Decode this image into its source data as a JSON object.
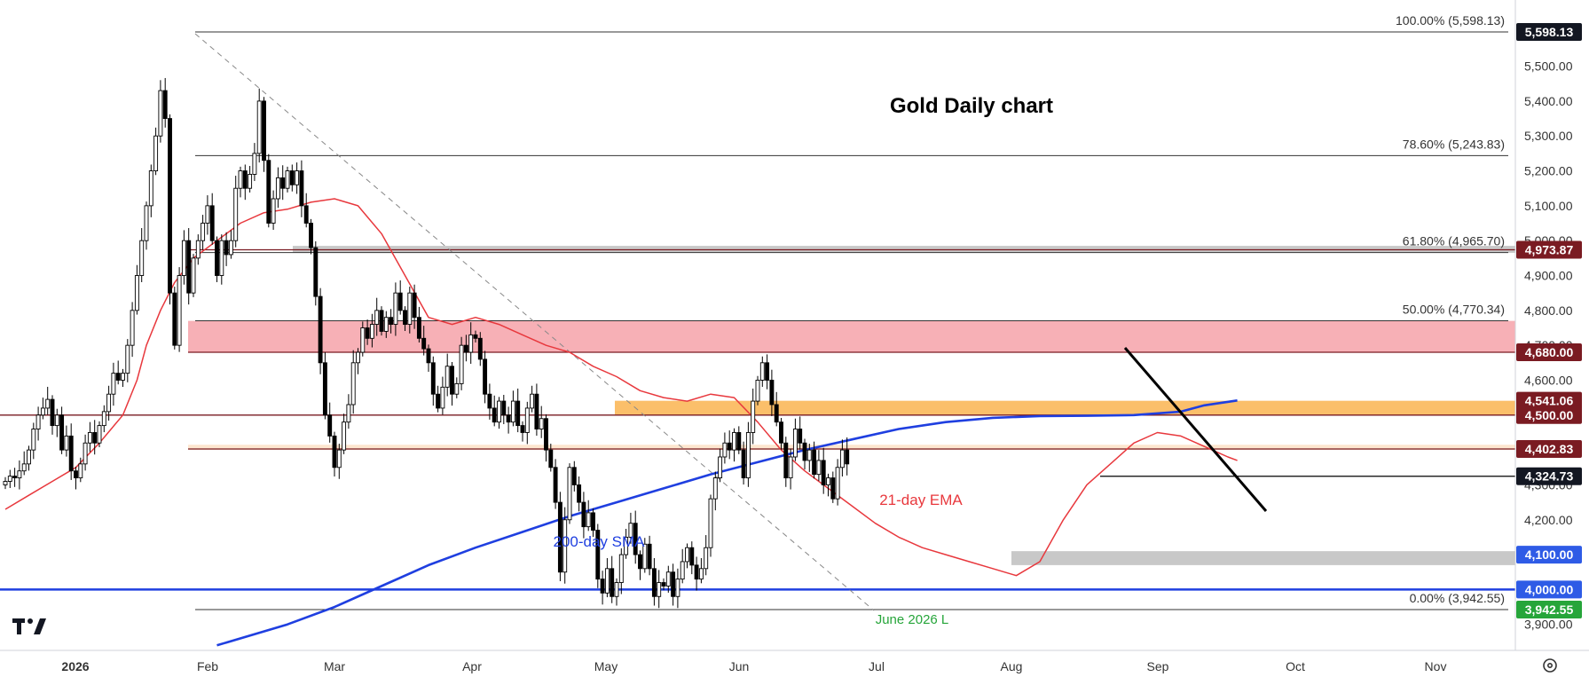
{
  "colors": {
    "candle_up": "#ffffff",
    "candle_down": "#000000",
    "candle_outline": "#000000",
    "sma200": "#1f3fe0",
    "ema21": "#e8383d",
    "zone_red": "#f7b0b6",
    "zone_orange": "#fbbf6a",
    "zone_peach": "#fde6cf",
    "zone_grey": "#c8c8c8",
    "tag_dark": "#131722",
    "tag_maroon": "#7a1b22",
    "tag_blue": "#2e5be6",
    "tag_green": "#26a53a"
  },
  "chart_data": {
    "type": "candlestick",
    "title": "Gold Daily chart",
    "x_axis": {
      "labels": [
        "2026",
        "Feb",
        "Mar",
        "Apr",
        "May",
        "Jun",
        "Jul",
        "Aug",
        "Sep",
        "Oct",
        "Nov"
      ]
    },
    "y_axis": {
      "range": [
        3850,
        5640
      ],
      "ticks": [
        "5,500.00",
        "5,400.00",
        "5,300.00",
        "5,200.00",
        "5,100.00",
        "5,000.00",
        "4,900.00",
        "4,800.00",
        "4,700.00",
        "4,600.00",
        "4,500.00",
        "4,400.00",
        "4,300.00",
        "4,200.00",
        "4,100.00",
        "4,000.00",
        "3,900.00"
      ]
    },
    "fibonacci": [
      {
        "label": "100.00% (5,598.13)",
        "value": 5598.13
      },
      {
        "label": "78.60% (5,243.83)",
        "value": 5243.83
      },
      {
        "label": "61.80% (4,965.70)",
        "value": 4965.7
      },
      {
        "label": "50.00% (4,770.34)",
        "value": 4770.34
      },
      {
        "label": "0.00% (3,942.55)",
        "value": 3942.55
      }
    ],
    "price_tags": [
      {
        "label": "5,598.13",
        "value": 5598.13,
        "style": "dark"
      },
      {
        "label": "4,973.87",
        "value": 4973.87,
        "style": "maroon"
      },
      {
        "label": "4,680.00",
        "value": 4680.0,
        "style": "maroon"
      },
      {
        "label": "4,541.06",
        "value": 4541.06,
        "style": "maroon"
      },
      {
        "label": "4,500.00",
        "value": 4500.0,
        "style": "maroon"
      },
      {
        "label": "4,402.83",
        "value": 4402.83,
        "style": "maroon"
      },
      {
        "label": "4,324.73",
        "value": 4324.73,
        "style": "dark"
      },
      {
        "label": "4,100.00",
        "value": 4100.0,
        "style": "blue"
      },
      {
        "label": "4,000.00",
        "value": 4000.0,
        "style": "blue"
      },
      {
        "label": "3,942.55",
        "value": 3942.55,
        "style": "green"
      }
    ],
    "zones": [
      {
        "name": "resistance-zone-red",
        "from": 4680,
        "to": 4770,
        "color": "zone_red"
      },
      {
        "name": "support-zone-orange",
        "from": 4500,
        "to": 4541,
        "color": "zone_orange"
      },
      {
        "name": "support-zone-peach",
        "from": 4400,
        "to": 4415,
        "color": "zone_peach"
      },
      {
        "name": "zone-grey-5000",
        "from": 4965,
        "to": 4985,
        "color": "zone_grey"
      },
      {
        "name": "zone-grey-4100",
        "from": 4070,
        "to": 4110,
        "color": "zone_grey"
      }
    ],
    "horizontal_lines": [
      {
        "value": 4680,
        "color": "#7a1b22"
      },
      {
        "value": 4500,
        "color": "#7a1b22"
      },
      {
        "value": 4402.83,
        "color": "#7a1b22"
      },
      {
        "value": 4324.73,
        "color": "#000000"
      },
      {
        "value": 4000,
        "color": "#1f3fe0"
      },
      {
        "value": 4973.87,
        "color": "#7a1b22"
      }
    ],
    "annotations": {
      "sma": "200-day SMA",
      "ema": "21-day EMA",
      "june_low": "June 2026 L"
    },
    "sma200": [
      [
        45,
        3840
      ],
      [
        60,
        3900
      ],
      [
        70,
        3950
      ],
      [
        80,
        4010
      ],
      [
        90,
        4070
      ],
      [
        100,
        4120
      ],
      [
        110,
        4165
      ],
      [
        120,
        4210
      ],
      [
        130,
        4250
      ],
      [
        140,
        4290
      ],
      [
        150,
        4330
      ],
      [
        160,
        4365
      ],
      [
        170,
        4400
      ],
      [
        180,
        4430
      ],
      [
        190,
        4460
      ],
      [
        200,
        4480
      ],
      [
        210,
        4492
      ],
      [
        220,
        4497
      ],
      [
        230,
        4498
      ],
      [
        240,
        4500
      ],
      [
        250,
        4510
      ],
      [
        255,
        4528
      ],
      [
        262,
        4542
      ]
    ],
    "ema21": [
      [
        0,
        4230
      ],
      [
        5,
        4270
      ],
      [
        10,
        4310
      ],
      [
        15,
        4350
      ],
      [
        20,
        4420
      ],
      [
        25,
        4500
      ],
      [
        28,
        4600
      ],
      [
        30,
        4700
      ],
      [
        33,
        4800
      ],
      [
        36,
        4880
      ],
      [
        40,
        4950
      ],
      [
        45,
        5000
      ],
      [
        50,
        5050
      ],
      [
        55,
        5080
      ],
      [
        60,
        5090
      ],
      [
        65,
        5110
      ],
      [
        70,
        5120
      ],
      [
        75,
        5100
      ],
      [
        80,
        5020
      ],
      [
        85,
        4900
      ],
      [
        90,
        4780
      ],
      [
        95,
        4760
      ],
      [
        100,
        4780
      ],
      [
        105,
        4760
      ],
      [
        110,
        4730
      ],
      [
        115,
        4700
      ],
      [
        120,
        4680
      ],
      [
        125,
        4640
      ],
      [
        130,
        4610
      ],
      [
        135,
        4570
      ],
      [
        140,
        4550
      ],
      [
        145,
        4540
      ],
      [
        150,
        4560
      ],
      [
        155,
        4550
      ],
      [
        160,
        4480
      ],
      [
        165,
        4400
      ],
      [
        170,
        4340
      ],
      [
        175,
        4290
      ],
      [
        180,
        4240
      ],
      [
        185,
        4190
      ],
      [
        190,
        4150
      ],
      [
        195,
        4120
      ],
      [
        200,
        4100
      ],
      [
        205,
        4080
      ],
      [
        210,
        4060
      ],
      [
        215,
        4040
      ],
      [
        220,
        4080
      ],
      [
        225,
        4200
      ],
      [
        230,
        4300
      ],
      [
        235,
        4360
      ],
      [
        240,
        4420
      ],
      [
        245,
        4450
      ],
      [
        250,
        4440
      ],
      [
        255,
        4410
      ],
      [
        260,
        4380
      ],
      [
        262,
        4370
      ]
    ],
    "candles": [
      [
        4300,
        4310
      ],
      [
        4310,
        4325
      ],
      [
        4325,
        4320
      ],
      [
        4320,
        4340
      ],
      [
        4340,
        4360
      ],
      [
        4360,
        4400
      ],
      [
        4400,
        4460
      ],
      [
        4460,
        4500
      ],
      [
        4500,
        4520
      ],
      [
        4520,
        4545
      ],
      [
        4545,
        4470
      ],
      [
        4470,
        4500
      ],
      [
        4500,
        4400
      ],
      [
        4400,
        4440
      ],
      [
        4440,
        4340
      ],
      [
        4340,
        4320
      ],
      [
        4320,
        4360
      ],
      [
        4360,
        4420
      ],
      [
        4420,
        4450
      ],
      [
        4450,
        4420
      ],
      [
        4420,
        4470
      ],
      [
        4470,
        4510
      ],
      [
        4510,
        4560
      ],
      [
        4560,
        4620
      ],
      [
        4620,
        4600
      ],
      [
        4600,
        4620
      ],
      [
        4620,
        4700
      ],
      [
        4700,
        4800
      ],
      [
        4800,
        4900
      ],
      [
        4900,
        5000
      ],
      [
        5000,
        5100
      ],
      [
        5100,
        5200
      ],
      [
        5200,
        5300
      ],
      [
        5300,
        5430
      ],
      [
        5430,
        5350
      ],
      [
        5350,
        4850
      ],
      [
        4850,
        4700
      ],
      [
        4700,
        4900
      ],
      [
        4900,
        5000
      ],
      [
        5000,
        4850
      ],
      [
        4850,
        4950
      ],
      [
        4950,
        5000
      ],
      [
        5000,
        5050
      ],
      [
        5050,
        5100
      ],
      [
        5100,
        5000
      ],
      [
        5000,
        4900
      ],
      [
        4900,
        5000
      ],
      [
        5000,
        4960
      ],
      [
        4960,
        5000
      ],
      [
        5000,
        5150
      ],
      [
        5150,
        5200
      ],
      [
        5200,
        5150
      ],
      [
        5150,
        5190
      ],
      [
        5190,
        5250
      ],
      [
        5250,
        5400
      ],
      [
        5400,
        5230
      ],
      [
        5230,
        5050
      ],
      [
        5050,
        5120
      ],
      [
        5120,
        5180
      ],
      [
        5180,
        5150
      ],
      [
        5150,
        5200
      ],
      [
        5200,
        5160
      ],
      [
        5160,
        5200
      ],
      [
        5200,
        5100
      ],
      [
        5100,
        5050
      ],
      [
        5050,
        4980
      ],
      [
        4980,
        4840
      ],
      [
        4840,
        4650
      ],
      [
        4650,
        4500
      ],
      [
        4500,
        4440
      ],
      [
        4440,
        4350
      ],
      [
        4350,
        4400
      ],
      [
        4400,
        4480
      ],
      [
        4480,
        4530
      ],
      [
        4530,
        4650
      ],
      [
        4650,
        4680
      ],
      [
        4680,
        4750
      ],
      [
        4750,
        4720
      ],
      [
        4720,
        4760
      ],
      [
        4760,
        4800
      ],
      [
        4800,
        4740
      ],
      [
        4740,
        4780
      ],
      [
        4780,
        4760
      ],
      [
        4760,
        4850
      ],
      [
        4850,
        4800
      ],
      [
        4800,
        4760
      ],
      [
        4760,
        4850
      ],
      [
        4850,
        4780
      ],
      [
        4780,
        4720
      ],
      [
        4720,
        4690
      ],
      [
        4690,
        4650
      ],
      [
        4650,
        4560
      ],
      [
        4560,
        4520
      ],
      [
        4520,
        4580
      ],
      [
        4580,
        4640
      ],
      [
        4640,
        4560
      ],
      [
        4560,
        4590
      ],
      [
        4590,
        4700
      ],
      [
        4700,
        4680
      ],
      [
        4680,
        4730
      ],
      [
        4730,
        4720
      ],
      [
        4720,
        4660
      ],
      [
        4660,
        4560
      ],
      [
        4560,
        4520
      ],
      [
        4520,
        4480
      ],
      [
        4480,
        4540
      ],
      [
        4540,
        4500
      ],
      [
        4500,
        4480
      ],
      [
        4480,
        4540
      ],
      [
        4540,
        4470
      ],
      [
        4470,
        4450
      ],
      [
        4450,
        4520
      ],
      [
        4520,
        4560
      ],
      [
        4560,
        4460
      ],
      [
        4460,
        4490
      ],
      [
        4490,
        4400
      ],
      [
        4400,
        4350
      ],
      [
        4350,
        4250
      ],
      [
        4250,
        4050
      ],
      [
        4050,
        4200
      ],
      [
        4200,
        4350
      ],
      [
        4350,
        4300
      ],
      [
        4300,
        4250
      ],
      [
        4250,
        4180
      ],
      [
        4180,
        4220
      ],
      [
        4220,
        4170
      ],
      [
        4170,
        4030
      ],
      [
        4030,
        3990
      ],
      [
        3990,
        4060
      ],
      [
        4060,
        3980
      ],
      [
        3980,
        4020
      ],
      [
        4020,
        4100
      ],
      [
        4100,
        4150
      ],
      [
        4150,
        4190
      ],
      [
        4190,
        4100
      ],
      [
        4100,
        4060
      ],
      [
        4060,
        4130
      ],
      [
        4130,
        4060
      ],
      [
        4060,
        3980
      ],
      [
        3980,
        4020
      ],
      [
        4020,
        4010
      ],
      [
        4010,
        4050
      ],
      [
        4050,
        3980
      ],
      [
        3980,
        4030
      ],
      [
        4030,
        4080
      ],
      [
        4080,
        4120
      ],
      [
        4120,
        4070
      ],
      [
        4070,
        4030
      ],
      [
        4030,
        4060
      ],
      [
        4060,
        4120
      ],
      [
        4120,
        4260
      ],
      [
        4260,
        4320
      ],
      [
        4320,
        4380
      ],
      [
        4380,
        4420
      ],
      [
        4420,
        4400
      ],
      [
        4400,
        4450
      ],
      [
        4450,
        4400
      ],
      [
        4400,
        4320
      ],
      [
        4320,
        4450
      ],
      [
        4450,
        4540
      ],
      [
        4540,
        4600
      ],
      [
        4600,
        4650
      ],
      [
        4650,
        4600
      ],
      [
        4600,
        4530
      ],
      [
        4530,
        4480
      ],
      [
        4480,
        4420
      ],
      [
        4420,
        4320
      ],
      [
        4320,
        4380
      ],
      [
        4380,
        4460
      ],
      [
        4460,
        4420
      ],
      [
        4420,
        4370
      ],
      [
        4370,
        4400
      ],
      [
        4400,
        4330
      ],
      [
        4330,
        4370
      ],
      [
        4370,
        4300
      ],
      [
        4300,
        4320
      ],
      [
        4320,
        4260
      ],
      [
        4260,
        4350
      ],
      [
        4350,
        4400
      ],
      [
        4400,
        4360
      ]
    ]
  }
}
